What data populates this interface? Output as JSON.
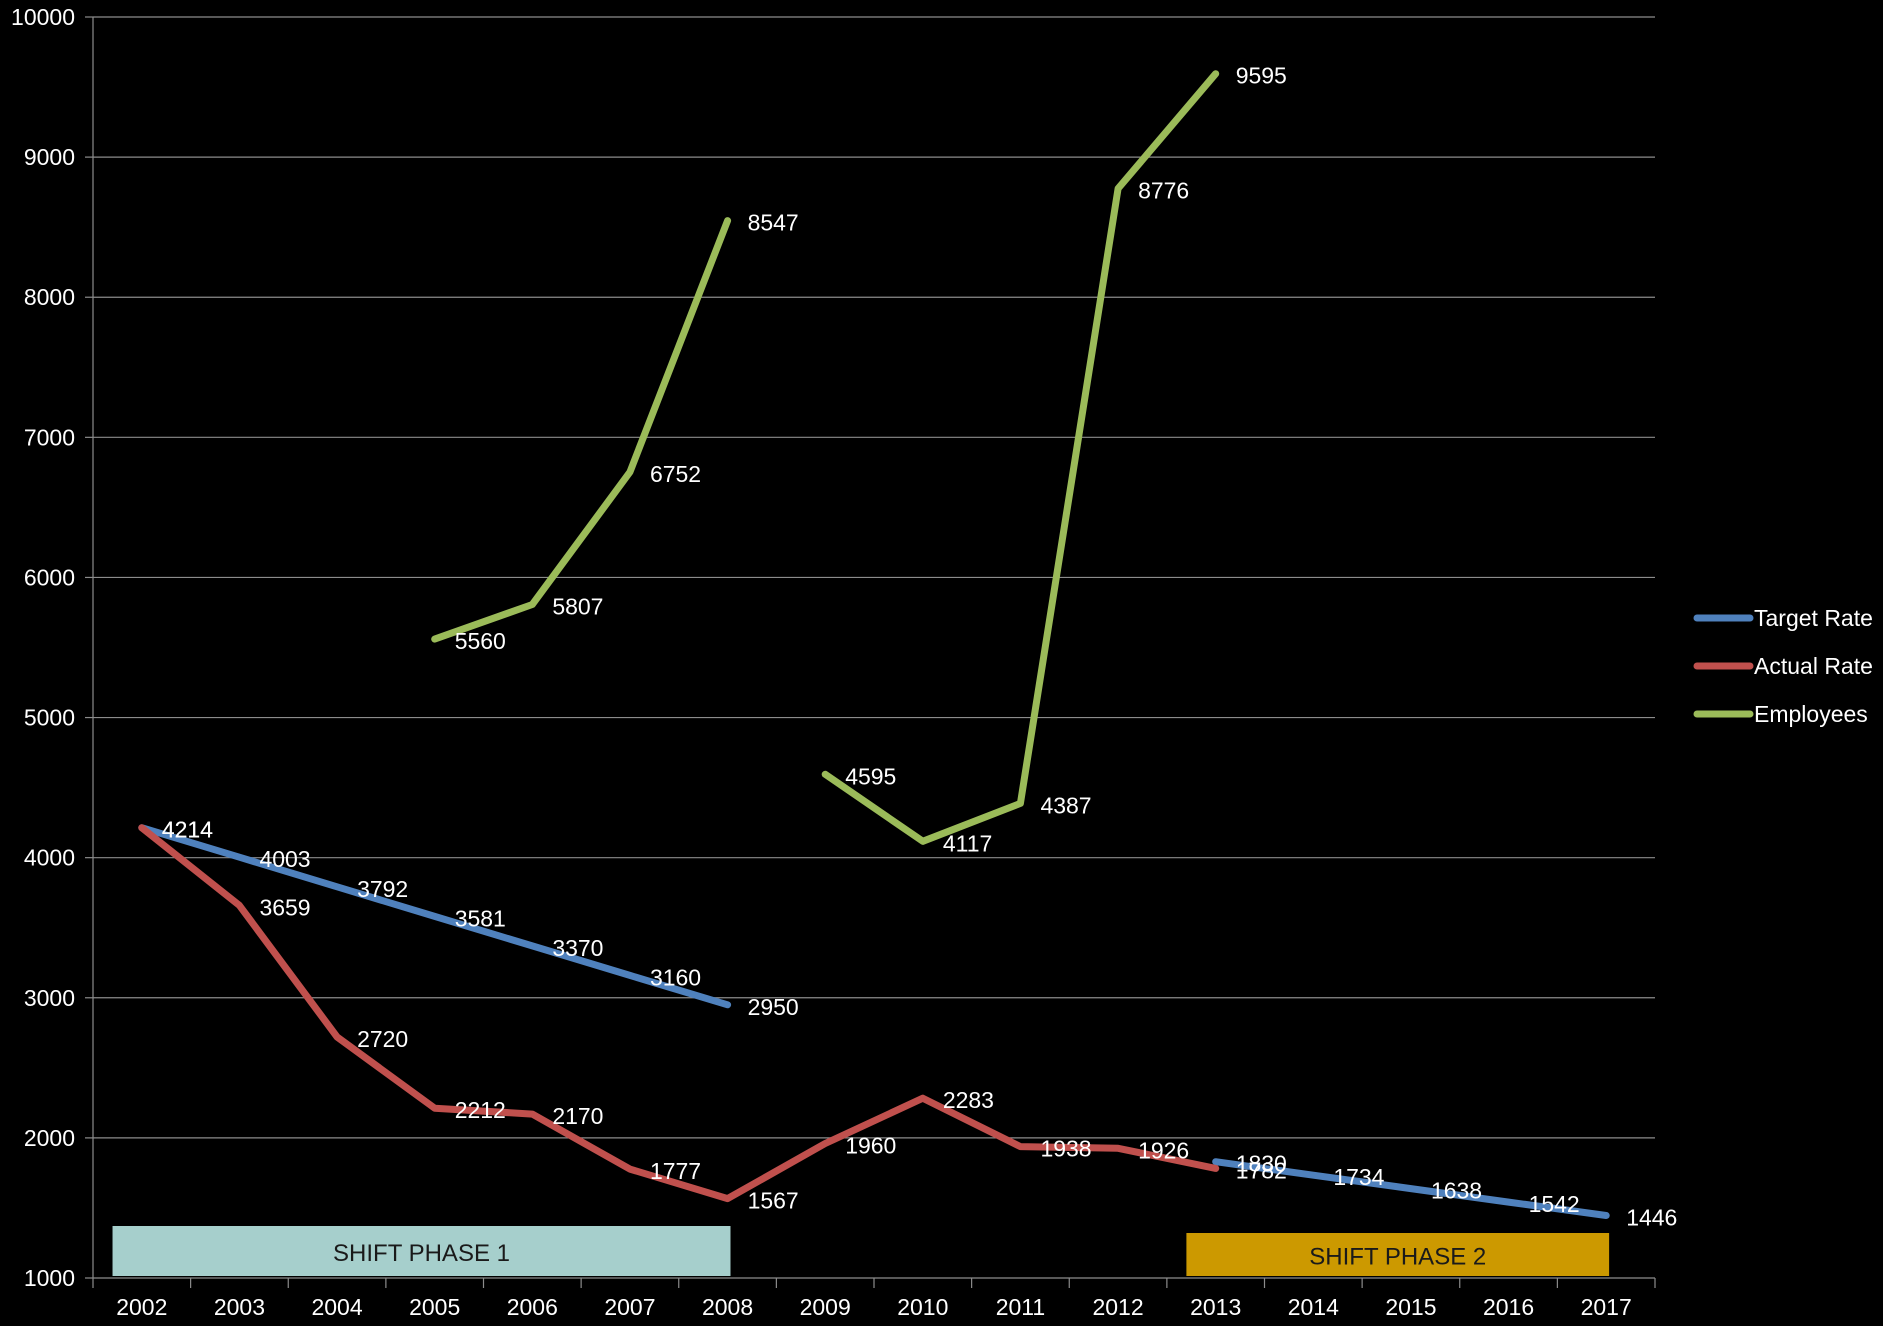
{
  "chart_data": {
    "type": "line",
    "categories": [
      "2002",
      "2003",
      "2004",
      "2005",
      "2006",
      "2007",
      "2008",
      "2009",
      "2010",
      "2011",
      "2012",
      "2013",
      "2014",
      "2015",
      "2016",
      "2017"
    ],
    "ylim": [
      1000,
      10000
    ],
    "yticks": [
      1000,
      2000,
      3000,
      4000,
      5000,
      6000,
      7000,
      8000,
      9000,
      10000
    ],
    "grid": true,
    "legend_position": "right",
    "series": [
      {
        "name": "Target Rate",
        "color": "#4f81bd",
        "segments": [
          {
            "start": 0,
            "values": [
              4214,
              4003,
              3792,
              3581,
              3370,
              3160,
              2950
            ]
          },
          {
            "start": 11,
            "values": [
              1830,
              1734,
              1638,
              1542,
              1446
            ]
          }
        ]
      },
      {
        "name": "Actual Rate",
        "color": "#c0504d",
        "segments": [
          {
            "start": 0,
            "values": [
              4214,
              3659,
              2720,
              2212,
              2170,
              1777,
              1567,
              1960,
              2283,
              1938,
              1926,
              1782
            ]
          }
        ]
      },
      {
        "name": "Employees",
        "color": "#9bbb59",
        "segments": [
          {
            "start": 3,
            "values": [
              5560,
              5807,
              6752,
              8547
            ]
          },
          {
            "start": 7,
            "values": [
              4595,
              4117,
              4387,
              8776,
              9595
            ]
          }
        ]
      }
    ],
    "annotations": [
      {
        "text": "SHIFT PHASE 1",
        "from": 0,
        "to": 6,
        "color": "#a6cfcc"
      },
      {
        "text": "SHIFT PHASE 2",
        "from": 11,
        "to": 15,
        "color": "#cc9900"
      }
    ]
  }
}
